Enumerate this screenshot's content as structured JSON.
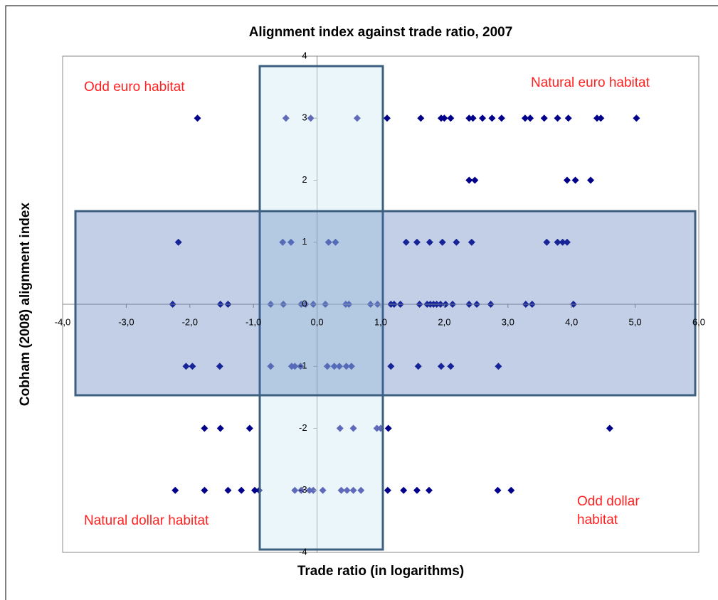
{
  "chart_data": {
    "type": "scatter",
    "title": "Alignment index against trade ratio, 2007",
    "xlabel": "Trade ratio (in logarithms)",
    "ylabel": "Cobham (2008) alignment index",
    "color": "#00008b",
    "annotations": [
      "Odd euro habitat",
      "Natural euro habitat",
      "Natural dollar habitat",
      "Odd dollar habitat"
    ],
    "xlim": [
      -4,
      6
    ],
    "ylim": [
      -4,
      4
    ],
    "xticks": [
      {
        "value": -4,
        "label": "-4,0"
      },
      {
        "value": -3,
        "label": "-3,0"
      },
      {
        "value": -2,
        "label": "-2,0"
      },
      {
        "value": -1,
        "label": "-1,0"
      },
      {
        "value": 0,
        "label": "0,0"
      },
      {
        "value": 1,
        "label": "1,0"
      },
      {
        "value": 2,
        "label": "2,0"
      },
      {
        "value": 3,
        "label": "3,0"
      },
      {
        "value": 4,
        "label": "4,0"
      },
      {
        "value": 5,
        "label": "5,0"
      },
      {
        "value": 6,
        "label": "6,0"
      }
    ],
    "yticks": [
      -4,
      -3,
      -2,
      -1,
      0,
      1,
      2,
      3,
      4
    ],
    "x": [
      -1.88,
      -0.49,
      -0.1,
      0.63,
      1.1,
      1.63,
      1.95,
      2.0,
      2.1,
      2.39,
      2.45,
      2.6,
      2.75,
      2.9,
      3.27,
      3.35,
      3.57,
      3.78,
      3.95,
      4.4,
      4.46,
      5.02,
      2.39,
      2.48,
      3.93,
      4.06,
      4.3,
      -2.18,
      -0.54,
      -0.41,
      0.18,
      0.29,
      1.4,
      1.57,
      1.77,
      1.97,
      2.19,
      2.43,
      3.61,
      3.78,
      3.86,
      3.93,
      -2.27,
      -1.52,
      -1.4,
      -0.73,
      -0.53,
      -0.25,
      -0.18,
      -0.06,
      0.13,
      0.45,
      0.5,
      0.84,
      0.95,
      1.16,
      1.21,
      1.31,
      1.61,
      1.73,
      1.78,
      1.83,
      1.88,
      1.94,
      2.02,
      2.13,
      2.39,
      2.51,
      2.73,
      3.28,
      3.38,
      4.03,
      -2.06,
      -1.96,
      -1.53,
      -0.73,
      -0.4,
      -0.35,
      -0.26,
      0.16,
      0.27,
      0.35,
      0.46,
      0.54,
      1.16,
      1.59,
      1.95,
      2.1,
      2.85,
      -1.77,
      -1.52,
      -1.06,
      0.36,
      0.57,
      0.94,
      1.0,
      1.12,
      4.6,
      -2.23,
      -1.77,
      -1.4,
      -1.19,
      -0.98,
      -0.91,
      -0.35,
      -0.25,
      -0.12,
      -0.06,
      0.09,
      0.38,
      0.47,
      0.57,
      0.69,
      1.11,
      1.36,
      1.57,
      1.76,
      2.84,
      3.05
    ],
    "values": [
      3,
      3,
      3,
      3,
      3,
      3,
      3,
      3,
      3,
      3,
      3,
      3,
      3,
      3,
      3,
      3,
      3,
      3,
      3,
      3,
      3,
      3,
      2,
      2,
      2,
      2,
      2,
      1,
      1,
      1,
      1,
      1,
      1,
      1,
      1,
      1,
      1,
      1,
      1,
      1,
      1,
      1,
      0,
      0,
      0,
      0,
      0,
      0,
      0,
      0,
      0,
      0,
      0,
      0,
      0,
      0,
      0,
      0,
      0,
      0,
      0,
      0,
      0,
      0,
      0,
      0,
      0,
      0,
      0,
      0,
      0,
      0,
      -1,
      -1,
      -1,
      -1,
      -1,
      -1,
      -1,
      -1,
      -1,
      -1,
      -1,
      -1,
      -1,
      -1,
      -1,
      -1,
      -1,
      -2,
      -2,
      -2,
      -2,
      -2,
      -2,
      -2,
      -2,
      -2,
      -3,
      -3,
      -3,
      -3,
      -3,
      -3,
      -3,
      -3,
      -3,
      -3,
      -3,
      -3,
      -3,
      -3,
      -3,
      -3,
      -3,
      -3,
      -3,
      -3,
      -3
    ]
  }
}
